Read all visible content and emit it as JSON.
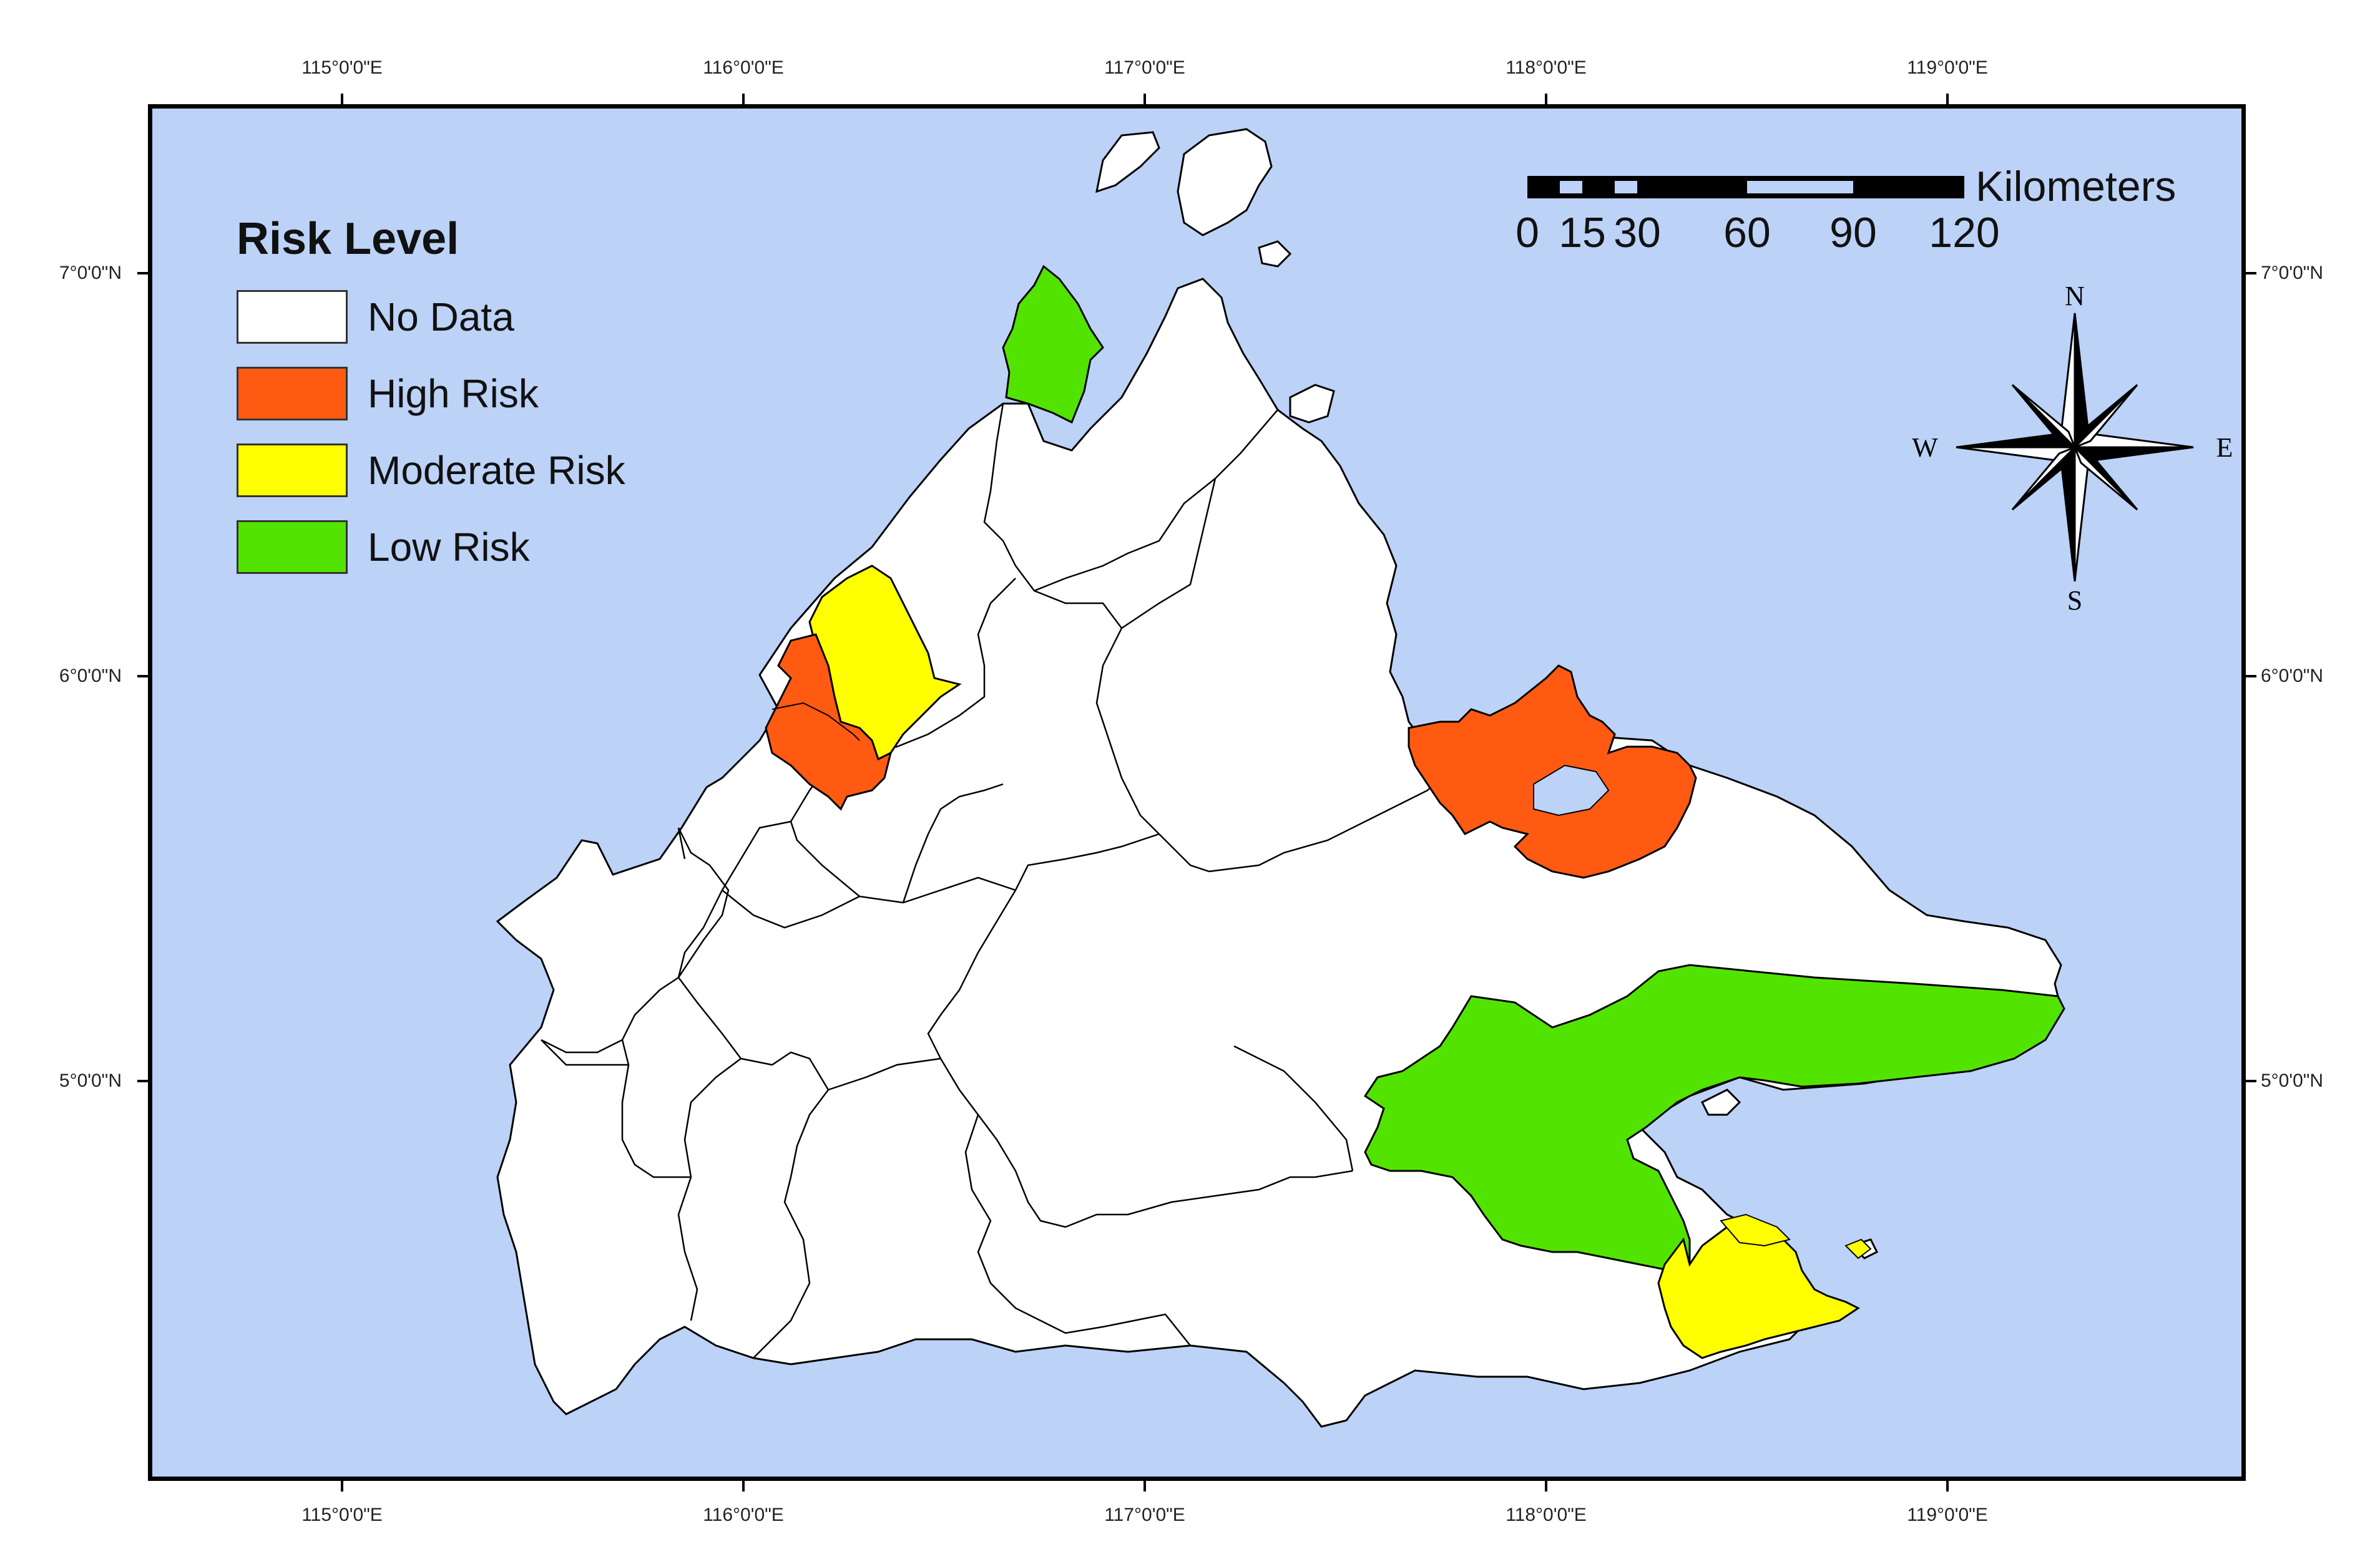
{
  "map": {
    "graticule": {
      "longitudes": [
        "115°0'0\"E",
        "116°0'0\"E",
        "117°0'0\"E",
        "118°0'0\"E",
        "119°0'0\"E"
      ],
      "latitudes": [
        "7°0'0\"N",
        "6°0'0\"N",
        "5°0'0\"N"
      ]
    },
    "legend": {
      "title": "Risk Level",
      "items": [
        {
          "label": "No Data",
          "color": "#ffffff"
        },
        {
          "label": "High Risk",
          "color": "#ff5a12"
        },
        {
          "label": "Moderate Risk",
          "color": "#ffff00"
        },
        {
          "label": "Low Risk",
          "color": "#52e400"
        }
      ]
    },
    "scale_bar": {
      "unit": "Kilometers",
      "ticks": [
        "0",
        "15",
        "30",
        "60",
        "90",
        "120"
      ]
    },
    "north_arrow": {
      "n": "N",
      "s": "S",
      "e": "E",
      "w": "W"
    },
    "colors": {
      "sea": "#bcd2f7",
      "land": "#ffffff",
      "border": "#000000"
    }
  }
}
